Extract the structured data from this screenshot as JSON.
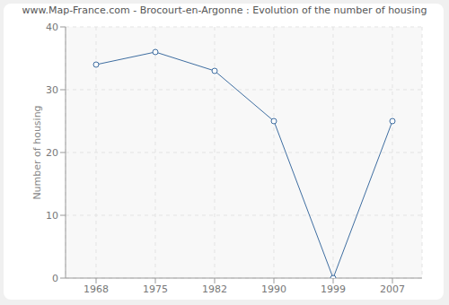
{
  "chart_data": {
    "type": "line",
    "title": "www.Map-France.com - Brocourt-en-Argonne : Evolution of the number of housing",
    "y_label": "Number of housing",
    "categories": [
      "1968",
      "1975",
      "1982",
      "1990",
      "1999",
      "2007"
    ],
    "values": [
      34,
      36,
      33,
      25,
      0,
      25
    ],
    "color": "#3e6da0",
    "ylim": [
      0,
      40
    ],
    "yticks": [
      0,
      10,
      20,
      30,
      40
    ],
    "grid": true,
    "marker": "circle"
  }
}
